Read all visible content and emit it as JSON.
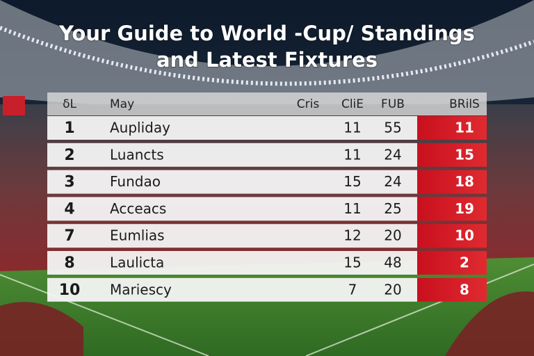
{
  "title": {
    "lines": [
      "Your Guide to World -Cup/ Standings",
      "and Latest Fixtures"
    ]
  },
  "table": {
    "header": [
      "δL",
      "May",
      "Cris",
      "CliE",
      "FUB",
      "BRilS"
    ],
    "rows": [
      [
        1,
        "Aupliday",
        11,
        55,
        11
      ],
      [
        2,
        "Luancts",
        11,
        24,
        15
      ],
      [
        3,
        "Fundao",
        15,
        24,
        18
      ],
      [
        4,
        "Acceacs",
        11,
        25,
        19
      ],
      [
        7,
        "Eumlias",
        12,
        20,
        10
      ],
      [
        8,
        "Laulicta",
        15,
        48,
        2
      ],
      [
        10,
        "Mariescy",
        7,
        20,
        8
      ]
    ]
  }
}
